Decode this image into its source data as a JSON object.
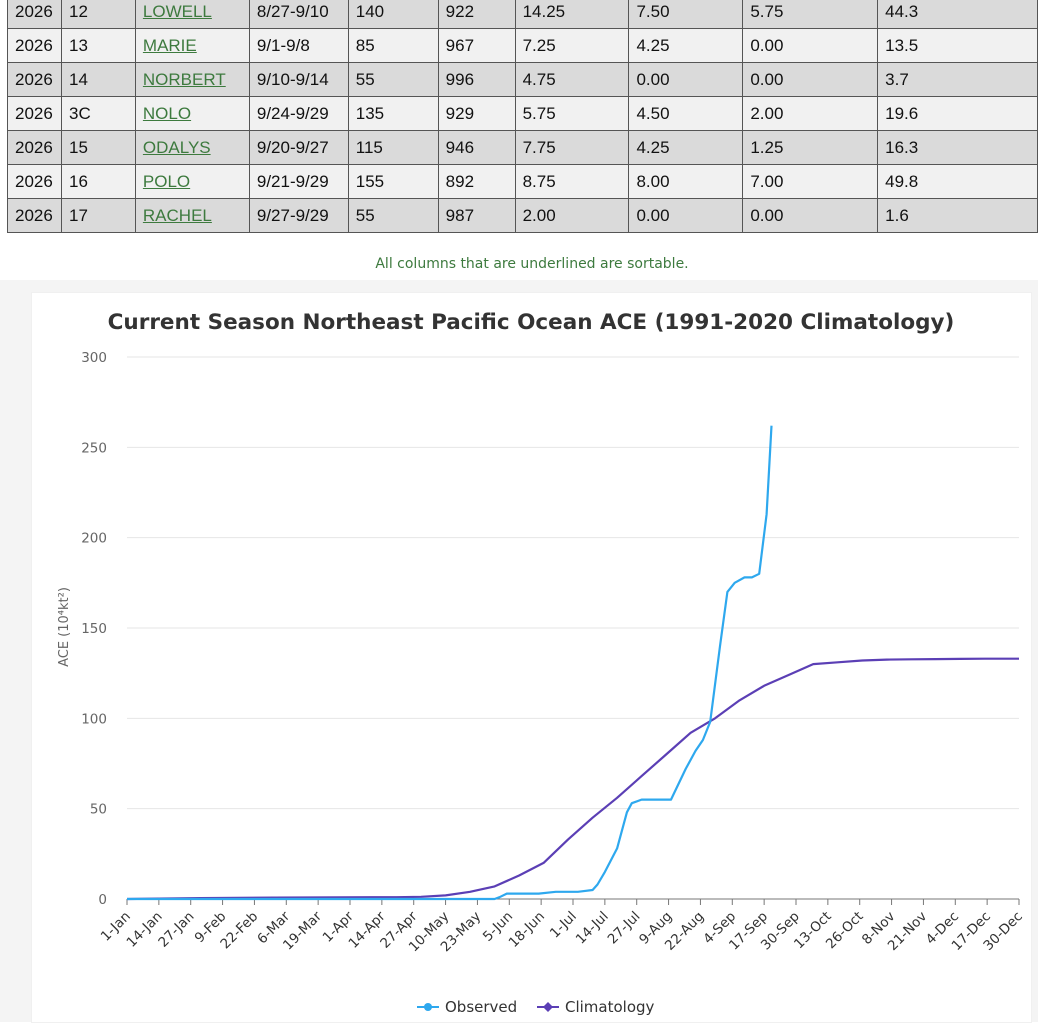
{
  "table": {
    "rows": [
      {
        "year": "2026",
        "num": "12",
        "name": "LOWELL",
        "dates": "8/27-9/10",
        "wind": "140",
        "pressure": "922",
        "c1": "14.25",
        "c2": "7.50",
        "c3": "5.75",
        "ace": "44.3"
      },
      {
        "year": "2026",
        "num": "13",
        "name": "MARIE",
        "dates": "9/1-9/8",
        "wind": "85",
        "pressure": "967",
        "c1": "7.25",
        "c2": "4.25",
        "c3": "0.00",
        "ace": "13.5"
      },
      {
        "year": "2026",
        "num": "14",
        "name": "NORBERT",
        "dates": "9/10-9/14",
        "wind": "55",
        "pressure": "996",
        "c1": "4.75",
        "c2": "0.00",
        "c3": "0.00",
        "ace": "3.7"
      },
      {
        "year": "2026",
        "num": "3C",
        "name": "NOLO",
        "dates": "9/24-9/29",
        "wind": "135",
        "pressure": "929",
        "c1": "5.75",
        "c2": "4.50",
        "c3": "2.00",
        "ace": "19.6"
      },
      {
        "year": "2026",
        "num": "15",
        "name": "ODALYS",
        "dates": "9/20-9/27",
        "wind": "115",
        "pressure": "946",
        "c1": "7.75",
        "c2": "4.25",
        "c3": "1.25",
        "ace": "16.3"
      },
      {
        "year": "2026",
        "num": "16",
        "name": "POLO",
        "dates": "9/21-9/29",
        "wind": "155",
        "pressure": "892",
        "c1": "8.75",
        "c2": "8.00",
        "c3": "7.00",
        "ace": "49.8"
      },
      {
        "year": "2026",
        "num": "17",
        "name": "RACHEL",
        "dates": "9/27-9/29",
        "wind": "55",
        "pressure": "987",
        "c1": "2.00",
        "c2": "0.00",
        "c3": "0.00",
        "ace": "1.6"
      }
    ]
  },
  "note": "All columns that are underlined are sortable.",
  "chart_data": {
    "type": "line",
    "title": "Current Season Northeast Pacific Ocean ACE (1991-2020 Climatology)",
    "ylabel": "ACE (10⁴kt²)",
    "ylim": [
      0,
      300
    ],
    "yticks": [
      0,
      50,
      100,
      150,
      200,
      250,
      300
    ],
    "grid": true,
    "legend_position": "bottom-center",
    "categories": [
      "1-Jan",
      "14-Jan",
      "27-Jan",
      "9-Feb",
      "22-Feb",
      "6-Mar",
      "19-Mar",
      "1-Apr",
      "14-Apr",
      "27-Apr",
      "10-May",
      "23-May",
      "5-Jun",
      "18-Jun",
      "1-Jul",
      "14-Jul",
      "27-Jul",
      "9-Aug",
      "22-Aug",
      "4-Sep",
      "17-Sep",
      "30-Sep",
      "13-Oct",
      "26-Oct",
      "8-Nov",
      "21-Nov",
      "4-Dec",
      "17-Dec",
      "30-Dec"
    ],
    "series": [
      {
        "name": "Observed",
        "color": "#2ea8ee",
        "x": [
          0,
          30,
          60,
          100,
          140,
          150,
          152,
          155,
          160,
          168,
          175,
          180,
          183,
          184,
          190,
          192,
          195,
          200,
          204,
          206,
          210,
          214,
          217,
          222,
          228,
          232,
          235,
          238,
          242,
          245,
          248,
          252,
          255,
          258,
          261,
          263
        ],
        "values": [
          0,
          0,
          0,
          0,
          0,
          0,
          1,
          3,
          3,
          3,
          4,
          4,
          4,
          4,
          5,
          8,
          15,
          28,
          48,
          53,
          55,
          55,
          55,
          55,
          72,
          82,
          88,
          98,
          140,
          170,
          175,
          178,
          178,
          180,
          213,
          262
        ]
      },
      {
        "name": "Climatology",
        "color": "#5b3fb5",
        "x": [
          0,
          30,
          60,
          100,
          110,
          120,
          130,
          140,
          150,
          160,
          170,
          180,
          190,
          200,
          210,
          220,
          230,
          240,
          250,
          260,
          270,
          280,
          290,
          300,
          310,
          320,
          330,
          340,
          350,
          364
        ],
        "values": [
          0,
          0.5,
          0.8,
          1,
          1,
          1.2,
          2,
          4,
          7,
          13,
          20,
          33,
          45,
          56,
          68,
          80,
          92,
          100,
          110,
          118,
          124,
          130,
          131,
          132,
          132.5,
          132.7,
          132.8,
          132.9,
          133,
          133
        ]
      }
    ]
  }
}
